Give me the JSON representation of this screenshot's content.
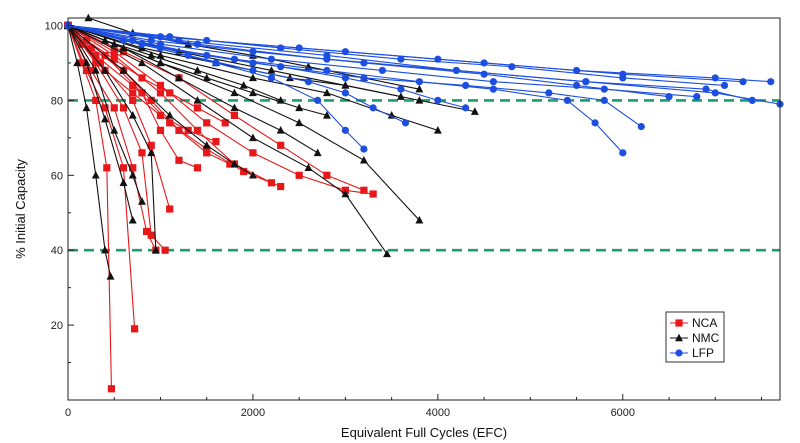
{
  "chart_data": {
    "type": "scatter",
    "xlabel": "Equivalent Full Cycles (EFC)",
    "ylabel": "% Initial Capacity",
    "xlim": [
      0,
      7700
    ],
    "ylim": [
      0,
      102
    ],
    "x_ticks": [
      0,
      2000,
      4000,
      6000
    ],
    "y_ticks": [
      20,
      40,
      60,
      80,
      100
    ],
    "grid": false,
    "legend_position": "bottom-right",
    "reference_lines": [
      {
        "y": 80,
        "style": "dashed",
        "color": "#1a9e6e"
      },
      {
        "y": 40,
        "style": "dashed",
        "color": "#1a9e6e"
      }
    ],
    "series": [
      {
        "name": "NCA",
        "marker": "square",
        "color": "#e8171a",
        "runs": [
          [
            [
              0,
              100
            ],
            [
              150,
              90
            ],
            [
              300,
              80
            ],
            [
              420,
              62
            ],
            [
              470,
              3
            ]
          ],
          [
            [
              0,
              100
            ],
            [
              200,
              88
            ],
            [
              400,
              78
            ],
            [
              600,
              62
            ],
            [
              720,
              19
            ]
          ],
          [
            [
              0,
              100
            ],
            [
              250,
              88
            ],
            [
              500,
              78
            ],
            [
              700,
              62
            ],
            [
              850,
              45
            ],
            [
              950,
              40
            ]
          ],
          [
            [
              0,
              100
            ],
            [
              300,
              90
            ],
            [
              600,
              78
            ],
            [
              800,
              66
            ],
            [
              900,
              44
            ],
            [
              1050,
              40
            ]
          ],
          [
            [
              0,
              100
            ],
            [
              350,
              90
            ],
            [
              700,
              80
            ],
            [
              900,
              68
            ],
            [
              1100,
              51
            ]
          ],
          [
            [
              0,
              100
            ],
            [
              400,
              92
            ],
            [
              800,
              82
            ],
            [
              1000,
              72
            ],
            [
              1200,
              64
            ],
            [
              1400,
              62
            ]
          ],
          [
            [
              0,
              100
            ],
            [
              500,
              92
            ],
            [
              1000,
              82
            ],
            [
              1400,
              72
            ],
            [
              1800,
              63
            ],
            [
              2200,
              58
            ]
          ],
          [
            [
              0,
              100
            ],
            [
              500,
              93
            ],
            [
              1000,
              84
            ],
            [
              1500,
              74
            ],
            [
              2000,
              66
            ],
            [
              2500,
              60
            ],
            [
              3000,
              56
            ],
            [
              3300,
              55
            ]
          ],
          [
            [
              0,
              100
            ],
            [
              600,
              93
            ],
            [
              1200,
              86
            ],
            [
              1800,
              76
            ],
            [
              2300,
              68
            ],
            [
              2800,
              60
            ],
            [
              3200,
              56
            ]
          ],
          [
            [
              0,
              100
            ],
            [
              300,
              92
            ],
            [
              700,
              84
            ],
            [
              1100,
              74
            ],
            [
              1500,
              67
            ],
            [
              1900,
              61
            ],
            [
              2300,
              57
            ]
          ],
          [
            [
              0,
              100
            ],
            [
              250,
              94
            ],
            [
              600,
              88
            ],
            [
              900,
              80
            ],
            [
              1200,
              72
            ],
            [
              1500,
              66
            ],
            [
              1750,
              63
            ]
          ],
          [
            [
              0,
              100
            ],
            [
              150,
              95
            ],
            [
              400,
              88
            ],
            [
              700,
              82
            ],
            [
              1000,
              76
            ],
            [
              1300,
              72
            ],
            [
              1600,
              69
            ]
          ],
          [
            [
              0,
              100
            ],
            [
              200,
              96
            ],
            [
              500,
              91
            ],
            [
              800,
              86
            ],
            [
              1100,
              82
            ],
            [
              1400,
              78
            ],
            [
              1700,
              74
            ]
          ]
        ]
      },
      {
        "name": "NMC",
        "marker": "triangle",
        "color": "#111111",
        "runs": [
          [
            [
              0,
              100
            ],
            [
              100,
              90
            ],
            [
              200,
              78
            ],
            [
              300,
              60
            ],
            [
              400,
              40
            ],
            [
              460,
              33
            ]
          ],
          [
            [
              0,
              100
            ],
            [
              200,
              90
            ],
            [
              400,
              75
            ],
            [
              600,
              58
            ],
            [
              700,
              48
            ]
          ],
          [
            [
              0,
              100
            ],
            [
              300,
              88
            ],
            [
              500,
              72
            ],
            [
              700,
              60
            ],
            [
              800,
              53
            ]
          ],
          [
            [
              0,
              100
            ],
            [
              400,
              88
            ],
            [
              700,
              76
            ],
            [
              900,
              66
            ],
            [
              950,
              40
            ]
          ],
          [
            [
              0,
              100
            ],
            [
              600,
              88
            ],
            [
              1100,
              76
            ],
            [
              1500,
              68
            ],
            [
              1800,
              63
            ],
            [
              2000,
              60
            ]
          ],
          [
            [
              0,
              100
            ],
            [
              800,
              90
            ],
            [
              1400,
              80
            ],
            [
              2000,
              70
            ],
            [
              2600,
              62
            ],
            [
              3000,
              55
            ],
            [
              3450,
              39
            ]
          ],
          [
            [
              0,
              100
            ],
            [
              1000,
              90
            ],
            [
              1800,
              82
            ],
            [
              2500,
              74
            ],
            [
              3200,
              64
            ],
            [
              3800,
              48
            ]
          ],
          [
            [
              0,
              100
            ],
            [
              1000,
              92
            ],
            [
              2000,
              86
            ],
            [
              2800,
              82
            ],
            [
              3500,
              76
            ],
            [
              4000,
              72
            ]
          ],
          [
            [
              0,
              100
            ],
            [
              1200,
              93
            ],
            [
              2200,
              88
            ],
            [
              3000,
              84
            ],
            [
              3800,
              80
            ],
            [
              4400,
              77
            ]
          ],
          [
            [
              0,
              100
            ],
            [
              800,
              94
            ],
            [
              1600,
              90
            ],
            [
              2400,
              86
            ],
            [
              3000,
              84
            ],
            [
              3600,
              81
            ]
          ],
          [
            [
              0,
              100
            ],
            [
              500,
              95
            ],
            [
              1000,
              90
            ],
            [
              1500,
              86
            ],
            [
              2000,
              82
            ],
            [
              2500,
              78
            ],
            [
              2800,
              76
            ]
          ],
          [
            [
              0,
              100
            ],
            [
              400,
              96
            ],
            [
              900,
              92
            ],
            [
              1400,
              88
            ],
            [
              1900,
              84
            ],
            [
              2300,
              80
            ]
          ],
          [
            [
              0,
              100
            ],
            [
              600,
              94
            ],
            [
              1200,
              86
            ],
            [
              1800,
              78
            ],
            [
              2300,
              72
            ],
            [
              2700,
              66
            ]
          ],
          [
            [
              220,
              102
            ],
            [
              700,
              98
            ],
            [
              1300,
              95
            ],
            [
              2000,
              92
            ],
            [
              2600,
              89
            ],
            [
              3200,
              86
            ],
            [
              3800,
              83
            ]
          ]
        ]
      },
      {
        "name": "LFP",
        "marker": "circle",
        "color": "#1c4fe0",
        "runs": [
          [
            [
              0,
              100
            ],
            [
              1000,
              97
            ],
            [
              2500,
              94
            ],
            [
              4000,
              91
            ],
            [
              5500,
              88
            ],
            [
              7000,
              86
            ],
            [
              7600,
              85
            ]
          ],
          [
            [
              0,
              100
            ],
            [
              1500,
              96
            ],
            [
              3000,
              93
            ],
            [
              4500,
              90
            ],
            [
              6000,
              87
            ],
            [
              7300,
              85
            ]
          ],
          [
            [
              0,
              100
            ],
            [
              1200,
              96
            ],
            [
              2800,
              92
            ],
            [
              4200,
              88
            ],
            [
              5600,
              85
            ],
            [
              7000,
              82
            ],
            [
              7700,
              79
            ]
          ],
          [
            [
              0,
              100
            ],
            [
              1400,
              95
            ],
            [
              2800,
              91
            ],
            [
              4200,
              88
            ],
            [
              5600,
              85
            ],
            [
              6900,
              83
            ],
            [
              7400,
              80
            ]
          ],
          [
            [
              0,
              100
            ],
            [
              1000,
              95
            ],
            [
              2200,
              91
            ],
            [
              3400,
              88
            ],
            [
              4600,
              85
            ],
            [
              5800,
              83
            ],
            [
              6800,
              81
            ]
          ],
          [
            [
              0,
              100
            ],
            [
              1000,
              94
            ],
            [
              2000,
              90
            ],
            [
              3200,
              86
            ],
            [
              4300,
              84
            ],
            [
              5200,
              82
            ],
            [
              5800,
              80
            ],
            [
              6200,
              73
            ]
          ],
          [
            [
              0,
              100
            ],
            [
              800,
              95
            ],
            [
              1800,
              91
            ],
            [
              2800,
              88
            ],
            [
              3800,
              85
            ],
            [
              4600,
              83
            ],
            [
              5400,
              80
            ],
            [
              5700,
              74
            ],
            [
              6000,
              66
            ]
          ],
          [
            [
              0,
              100
            ],
            [
              700,
              96
            ],
            [
              1500,
              92
            ],
            [
              2300,
              89
            ],
            [
              3000,
              86
            ],
            [
              3600,
              83
            ],
            [
              4000,
              80
            ],
            [
              4300,
              78
            ]
          ],
          [
            [
              0,
              100
            ],
            [
              600,
              96
            ],
            [
              1300,
              92
            ],
            [
              2000,
              88
            ],
            [
              2600,
              85
            ],
            [
              3000,
              82
            ],
            [
              3300,
              78
            ],
            [
              3650,
              74
            ]
          ],
          [
            [
              0,
              100
            ],
            [
              800,
              95
            ],
            [
              1600,
              90
            ],
            [
              2200,
              86
            ],
            [
              2700,
              80
            ],
            [
              3000,
              72
            ],
            [
              3200,
              67
            ]
          ],
          [
            [
              0,
              100
            ],
            [
              900,
              96
            ],
            [
              2000,
              93
            ],
            [
              3200,
              90
            ],
            [
              4500,
              87
            ],
            [
              5500,
              84
            ],
            [
              6500,
              81
            ]
          ],
          [
            [
              0,
              100
            ],
            [
              1100,
              97
            ],
            [
              2300,
              94
            ],
            [
              3600,
              91
            ],
            [
              4800,
              89
            ],
            [
              6000,
              86
            ],
            [
              7100,
              84
            ]
          ]
        ]
      }
    ]
  }
}
